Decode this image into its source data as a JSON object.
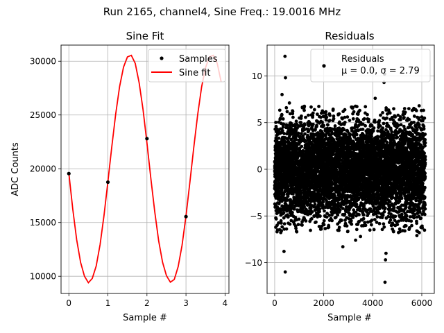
{
  "suptitle": "Run 2165, channel4, Sine Freq.: 19.0016 MHz",
  "chart_data": [
    {
      "type": "line",
      "title": "Sine Fit",
      "xlabel": "Sample #",
      "ylabel": "ADC Counts",
      "xlim": [
        -0.2,
        4.1
      ],
      "ylim": [
        8400,
        31500
      ],
      "xticks": [
        0,
        1,
        2,
        3,
        4
      ],
      "yticks": [
        10000,
        15000,
        20000,
        25000,
        30000
      ],
      "grid": true,
      "legend_position": "top-right",
      "series": [
        {
          "name": "Samples",
          "style": "points",
          "color": "#000000",
          "x": [
            0,
            1,
            2,
            3
          ],
          "y": [
            19550,
            18750,
            22800,
            15550
          ]
        },
        {
          "name": "Sine fit",
          "style": "line",
          "color": "#ff0000",
          "x": [
            0.0,
            0.1,
            0.2,
            0.3,
            0.4,
            0.5,
            0.6,
            0.7,
            0.8,
            0.9,
            1.0,
            1.1,
            1.2,
            1.3,
            1.4,
            1.5,
            1.6,
            1.7,
            1.8,
            1.9,
            2.0,
            2.1,
            2.2,
            2.3,
            2.4,
            2.5,
            2.6,
            2.7,
            2.8,
            2.9,
            3.0,
            3.1,
            3.2,
            3.3,
            3.4,
            3.5,
            3.6,
            3.7,
            3.8,
            3.9
          ],
          "y": [
            19580,
            16250,
            13400,
            11300,
            10000,
            9400,
            9800,
            10950,
            12950,
            15650,
            18800,
            22050,
            25100,
            27650,
            29450,
            30400,
            30550,
            29800,
            28000,
            25500,
            22400,
            19100,
            16000,
            13300,
            11300,
            10050,
            9450,
            9700,
            10900,
            12900,
            15600,
            18750,
            22000,
            25050,
            27600,
            29400,
            30400,
            30550,
            29800,
            28100
          ]
        }
      ]
    },
    {
      "type": "scatter",
      "title": "Residuals",
      "xlabel": "Sample #",
      "ylabel": "",
      "xlim": [
        -310,
        6510
      ],
      "ylim": [
        -13.3,
        13.3
      ],
      "xticks": [
        0,
        2000,
        4000,
        6000
      ],
      "yticks": [
        -10,
        -5,
        0,
        5,
        10
      ],
      "grid": true,
      "legend_position": "top-right",
      "series": [
        {
          "name": "Residuals",
          "legend_text": [
            "Residuals",
            "μ = 0.0, σ = 2.79"
          ],
          "color": "#000000",
          "points_count": 6144,
          "mean": 0.0,
          "std": 2.79,
          "extremes": [
            [
              420,
              12.1
            ],
            [
              430,
              -11.0
            ],
            [
              440,
              9.8
            ],
            [
              380,
              -8.8
            ],
            [
              300,
              8.0
            ],
            [
              4500,
              -12.1
            ],
            [
              4480,
              10.2
            ],
            [
              4520,
              -9.7
            ],
            [
              4460,
              9.3
            ],
            [
              4540,
              -9.0
            ],
            [
              2780,
              -8.3
            ],
            [
              3300,
              -7.6
            ],
            [
              1200,
              6.6
            ],
            [
              5300,
              6.5
            ],
            [
              6000,
              5.6
            ],
            [
              1900,
              -6.4
            ],
            [
              2600,
              5.9
            ],
            [
              5800,
              -7.1
            ],
            [
              3700,
              6.7
            ],
            [
              3500,
              -7.2
            ],
            [
              100,
              -6.0
            ],
            [
              900,
              -6.7
            ],
            [
              4100,
              7.6
            ],
            [
              5100,
              -6.4
            ],
            [
              600,
              7.1
            ]
          ]
        }
      ]
    }
  ]
}
